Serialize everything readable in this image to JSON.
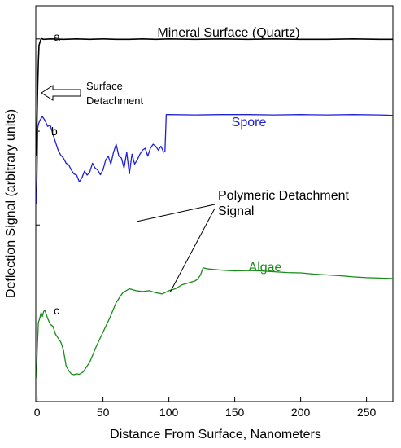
{
  "chart_data": {
    "type": "line",
    "title": "",
    "xlabel": "Distance From Surface, Nanometers",
    "ylabel": "Deflection Signal (arbitrary units)",
    "xlim": [
      -1,
      270
    ],
    "xticks": [
      0,
      50,
      100,
      150,
      200,
      250
    ],
    "ylim": [
      0,
      100
    ],
    "yticks_labeled": false,
    "grid": false,
    "legend": "none",
    "colors": {
      "a": "#000000",
      "b": "#1f1fd6",
      "c": "#1a8a1a",
      "annotation": "#000000"
    },
    "series": [
      {
        "name": "Mineral Surface (Quartz)",
        "panel_label": "a",
        "color": "#000000",
        "x": [
          -0.5,
          0,
          0.5,
          1,
          1.5,
          3,
          5,
          10,
          20,
          30,
          40,
          50,
          60,
          70,
          80,
          90,
          100,
          120,
          140,
          160,
          180,
          200,
          220,
          240,
          260,
          270
        ],
        "y": [
          62,
          72,
          80,
          86,
          90,
          91.7,
          91.5,
          91.6,
          91.5,
          91.6,
          91.5,
          91.6,
          91.5,
          91.5,
          91.6,
          91.5,
          91.6,
          91.5,
          91.6,
          91.5,
          91.6,
          91.5,
          91.5,
          91.6,
          91.5,
          91.5
        ]
      },
      {
        "name": "Spore",
        "panel_label": "b",
        "color": "#1f1fd6",
        "x": [
          -0.5,
          0,
          0.5,
          1,
          2,
          4,
          6,
          8,
          10,
          12,
          14,
          16,
          18,
          20,
          22,
          24,
          26,
          28,
          30,
          32,
          34,
          36,
          38,
          40,
          42,
          44,
          46,
          48,
          50,
          52,
          54,
          56,
          58,
          60,
          62,
          64,
          66,
          68,
          70,
          72,
          74,
          76,
          78,
          80,
          82,
          84,
          86,
          88,
          90,
          92,
          94,
          96,
          97,
          98,
          100,
          120,
          140,
          160,
          180,
          200,
          220,
          240,
          260,
          270
        ],
        "y": [
          50,
          58,
          69,
          70,
          71,
          72,
          71,
          69.5,
          69.8,
          67.5,
          65.5,
          63.5,
          62.2,
          61.5,
          60.2,
          59.8,
          58.5,
          57.5,
          57.2,
          55.5,
          56.5,
          58.2,
          57.2,
          58,
          60.2,
          59,
          58.5,
          57.3,
          58.5,
          61,
          62,
          60,
          63,
          65,
          62,
          61.5,
          59,
          63,
          57.5,
          62.5,
          60,
          61,
          62.5,
          63.5,
          64,
          62,
          64,
          65,
          64.5,
          63.5,
          64.5,
          63,
          63.2,
          72.5,
          72.5,
          72.4,
          72.5,
          72.5,
          72.4,
          72.5,
          72.4,
          72.5,
          72.4,
          72.3
        ]
      },
      {
        "name": "Algae",
        "panel_label": "c",
        "color": "#1a8a1a",
        "x": [
          -0.5,
          0,
          0.5,
          1,
          2,
          3,
          4,
          5,
          6,
          8,
          10,
          12,
          14,
          16,
          18,
          20,
          22,
          24,
          26,
          28,
          30,
          32,
          35,
          40,
          45,
          50,
          55,
          60,
          65,
          70,
          75,
          80,
          85,
          90,
          95,
          100,
          105,
          110,
          115,
          120,
          122,
          124,
          126,
          130,
          140,
          150,
          160,
          170,
          180,
          190,
          200,
          210,
          220,
          230,
          240,
          250,
          260,
          270
        ],
        "y": [
          6,
          12,
          16,
          20,
          21,
          22.5,
          21.5,
          22.8,
          23,
          21,
          19.5,
          19,
          17,
          16,
          15,
          13,
          9,
          7.8,
          7,
          6.8,
          7,
          6.9,
          7.5,
          10,
          14,
          17.5,
          21,
          25,
          27.5,
          28.5,
          28,
          27.8,
          28,
          27.5,
          27.2,
          28,
          28.5,
          29.5,
          30,
          30.5,
          31,
          32,
          33.8,
          33.5,
          33.2,
          33,
          33.1,
          33,
          32.8,
          32.6,
          32.5,
          32.2,
          32,
          31.8,
          31.5,
          31.3,
          31.2,
          31.1
        ]
      }
    ],
    "annotations": {
      "surface_detachment": "Surface\nDetachment",
      "polymeric": "Polymeric Detachment\nSignal"
    }
  }
}
